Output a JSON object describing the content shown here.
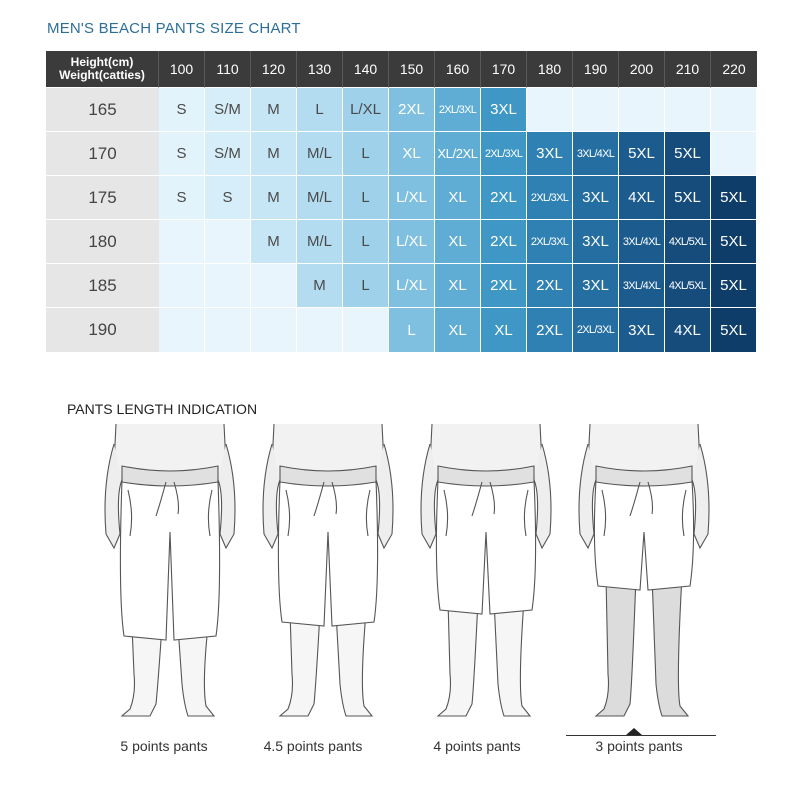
{
  "title": "MEN'S BEACH PANTS SIZE CHART",
  "table": {
    "corner_line1": "Height(cm)",
    "corner_line2": "Weight(catties)",
    "weights": [
      "100",
      "110",
      "120",
      "130",
      "140",
      "150",
      "160",
      "170",
      "180",
      "190",
      "200",
      "210",
      "220"
    ],
    "rows": [
      {
        "height": "165",
        "sizes": [
          "S",
          "S/M",
          "M",
          "L",
          "L/XL",
          "2XL",
          "2XL/3XL",
          "3XL",
          "",
          "",
          "",
          "",
          ""
        ]
      },
      {
        "height": "170",
        "sizes": [
          "S",
          "S/M",
          "M",
          "M/L",
          "L",
          "XL",
          "XL/2XL",
          "2XL/3XL",
          "3XL",
          "3XL/4XL",
          "5XL",
          "5XL",
          ""
        ]
      },
      {
        "height": "175",
        "sizes": [
          "S",
          "S",
          "M",
          "M/L",
          "L",
          "L/XL",
          "XL",
          "2XL",
          "2XL/3XL",
          "3XL",
          "4XL",
          "5XL",
          "5XL"
        ]
      },
      {
        "height": "180",
        "sizes": [
          "",
          "",
          "M",
          "M/L",
          "L",
          "L/XL",
          "XL",
          "2XL",
          "2XL/3XL",
          "3XL",
          "3XL/4XL",
          "4XL/5XL",
          "5XL"
        ]
      },
      {
        "height": "185",
        "sizes": [
          "",
          "",
          "",
          "M",
          "L",
          "L/XL",
          "XL",
          "2XL",
          "2XL",
          "3XL",
          "3XL/4XL",
          "4XL/5XL",
          "5XL"
        ]
      },
      {
        "height": "190",
        "sizes": [
          "",
          "",
          "",
          "",
          "",
          "L",
          "XL",
          "XL",
          "2XL",
          "2XL/3XL",
          "3XL",
          "4XL",
          "5XL"
        ]
      }
    ]
  },
  "column_colors": [
    "#e3f3fc",
    "#d6eef9",
    "#c7e6f5",
    "#b4dcf0",
    "#a0d1ea",
    "#7fc0e0",
    "#5fadd5",
    "#3f97c6",
    "#2f80b3",
    "#246ea2",
    "#1b5b8e",
    "#154c7c",
    "#0f3d6a"
  ],
  "length_title": "PANTS LENGTH INDICATION",
  "figures": [
    {
      "label": "5 points pants"
    },
    {
      "label": "4.5 points pants"
    },
    {
      "label": "4 points pants"
    },
    {
      "label": "3 points pants"
    }
  ]
}
